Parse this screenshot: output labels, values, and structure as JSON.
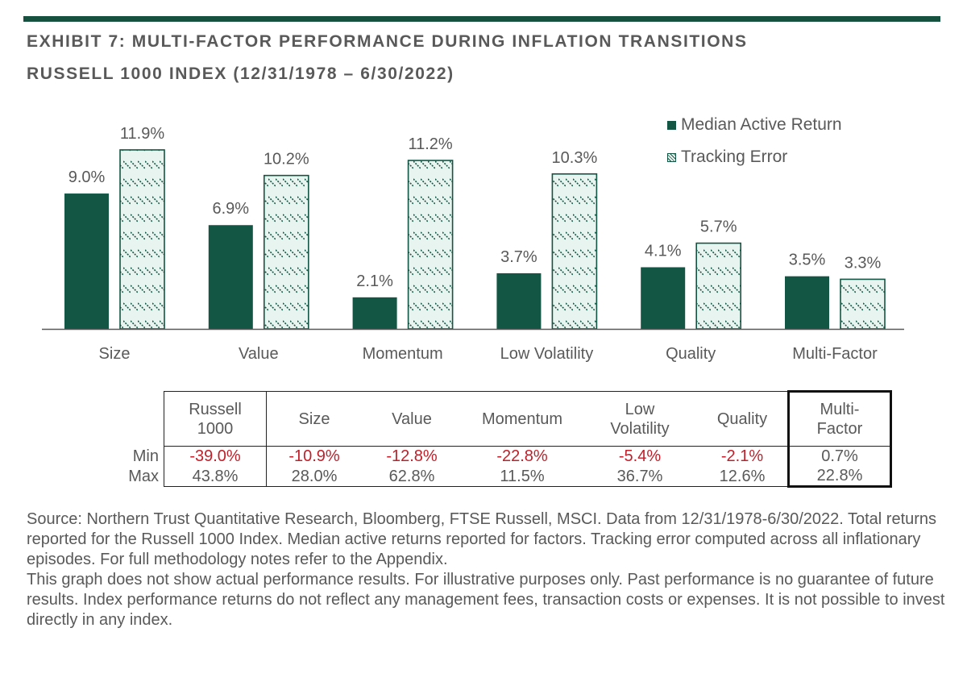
{
  "header": {
    "title_line1": "EXHIBIT 7: MULTI-FACTOR PERFORMANCE DURING INFLATION TRANSITIONS",
    "title_line2": "RUSSELL 1000 INDEX (12/31/1978 – 6/30/2022)"
  },
  "colors": {
    "brand_green": "#135643",
    "hatch_bg": "#e8f4f0",
    "negative_red": "#c0202a",
    "text_gray": "#595959"
  },
  "chart_data": {
    "type": "bar",
    "title": "Multi-Factor Performance During Inflation Transitions",
    "xlabel": "",
    "ylabel": "",
    "ylim": [
      0,
      12
    ],
    "grid": false,
    "legend_position": "top-right",
    "categories": [
      "Size",
      "Value",
      "Momentum",
      "Low Volatility",
      "Quality",
      "Multi-Factor"
    ],
    "series": [
      {
        "name": "Median Active Return",
        "style": "solid",
        "values": [
          9.0,
          6.9,
          2.1,
          3.7,
          4.1,
          3.5
        ],
        "labels": [
          "9.0%",
          "6.9%",
          "2.1%",
          "3.7%",
          "4.1%",
          "3.5%"
        ]
      },
      {
        "name": "Tracking Error",
        "style": "hatched",
        "values": [
          11.9,
          10.2,
          11.2,
          10.3,
          5.7,
          3.3
        ],
        "labels": [
          "11.9%",
          "10.2%",
          "11.2%",
          "10.3%",
          "5.7%",
          "3.3%"
        ]
      }
    ]
  },
  "legend": {
    "items": [
      {
        "label": "Median Active Return"
      },
      {
        "label": "Tracking Error"
      }
    ]
  },
  "table": {
    "columns": [
      {
        "line1": "Russell",
        "line2": "1000"
      },
      {
        "line1": "Size",
        "line2": ""
      },
      {
        "line1": "Value",
        "line2": ""
      },
      {
        "line1": "Momentum",
        "line2": ""
      },
      {
        "line1": "Low",
        "line2": "Volatility"
      },
      {
        "line1": "Quality",
        "line2": ""
      },
      {
        "line1": "Multi-",
        "line2": "Factor"
      }
    ],
    "rows": [
      {
        "label": "Min",
        "values": [
          "-39.0%",
          "-10.9%",
          "-12.8%",
          "-22.8%",
          "-5.4%",
          "-2.1%",
          "0.7%"
        ]
      },
      {
        "label": "Max",
        "values": [
          "43.8%",
          "28.0%",
          "62.8%",
          "11.5%",
          "36.7%",
          "12.6%",
          "22.8%"
        ]
      }
    ]
  },
  "notes": {
    "source": "Source: Northern Trust Quantitative Research, Bloomberg, FTSE Russell, MSCI. Data from 12/31/1978-6/30/2022. Total returns reported for the Russell 1000 Index.  Median active returns reported for factors. Tracking error computed across all inflationary episodes. For full methodology notes refer to the Appendix.",
    "disclaimer": "This graph does not show actual performance results. For illustrative purposes only. Past performance is no guarantee of future results. Index performance returns do not reflect any management fees, transaction costs or expenses. It is not possible to invest directly in any index."
  }
}
